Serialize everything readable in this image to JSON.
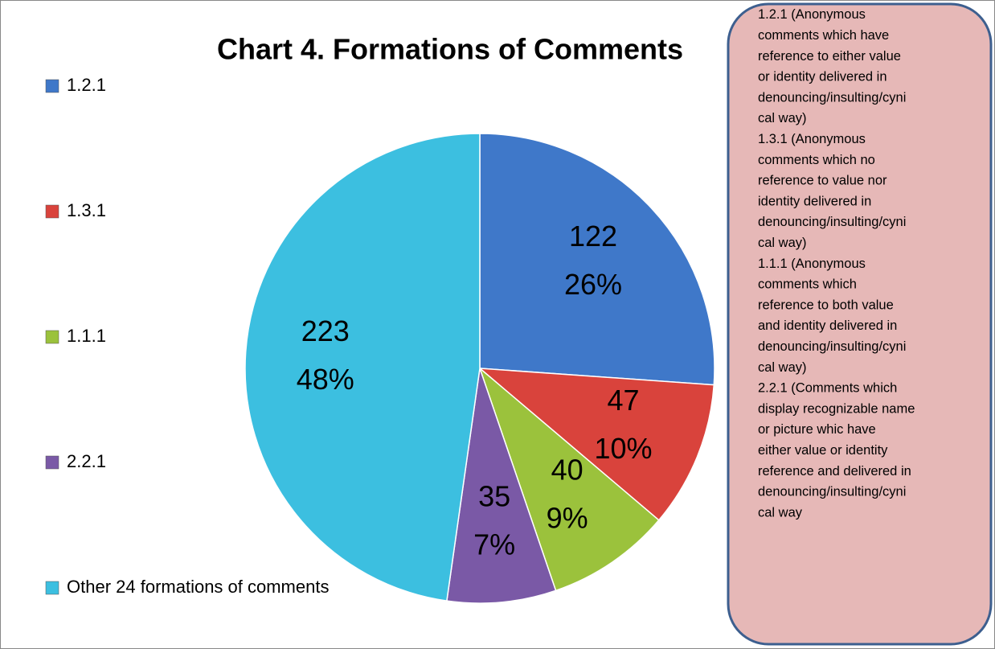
{
  "chart_data": {
    "type": "pie",
    "title": "Chart 4. Formations of Comments",
    "categories": [
      "1.2.1",
      "1.3.1",
      "1.1.1",
      "2.2.1",
      "Other 24 formations of comments"
    ],
    "values": [
      122,
      47,
      40,
      35,
      223
    ],
    "percent_labels": [
      "26%",
      "10%",
      "9%",
      "7%",
      "48%"
    ],
    "colors": [
      "#3f78c9",
      "#d9433c",
      "#9bc23c",
      "#7a59a6",
      "#3cbfe0"
    ],
    "legend": "left",
    "annotation": [
      "1.2.1 (Anonymous",
      "comments which have",
      "reference to either value",
      "or identity delivered in",
      "denouncing/insulting/cyni",
      "cal way)",
      "1.3.1 (Anonymous",
      "comments which no",
      "reference to value nor",
      "identity delivered in",
      "denouncing/insulting/cyni",
      "cal way)",
      "1.1.1 (Anonymous",
      "comments which",
      "reference to both value",
      "and identity delivered in",
      "denouncing/insulting/cyni",
      "cal way)",
      "2.2.1 (Comments which",
      "display recognizable name",
      "or picture whic have",
      "either value or identity",
      "reference and delivered in",
      "denouncing/insulting/cyni",
      "cal way"
    ]
  }
}
